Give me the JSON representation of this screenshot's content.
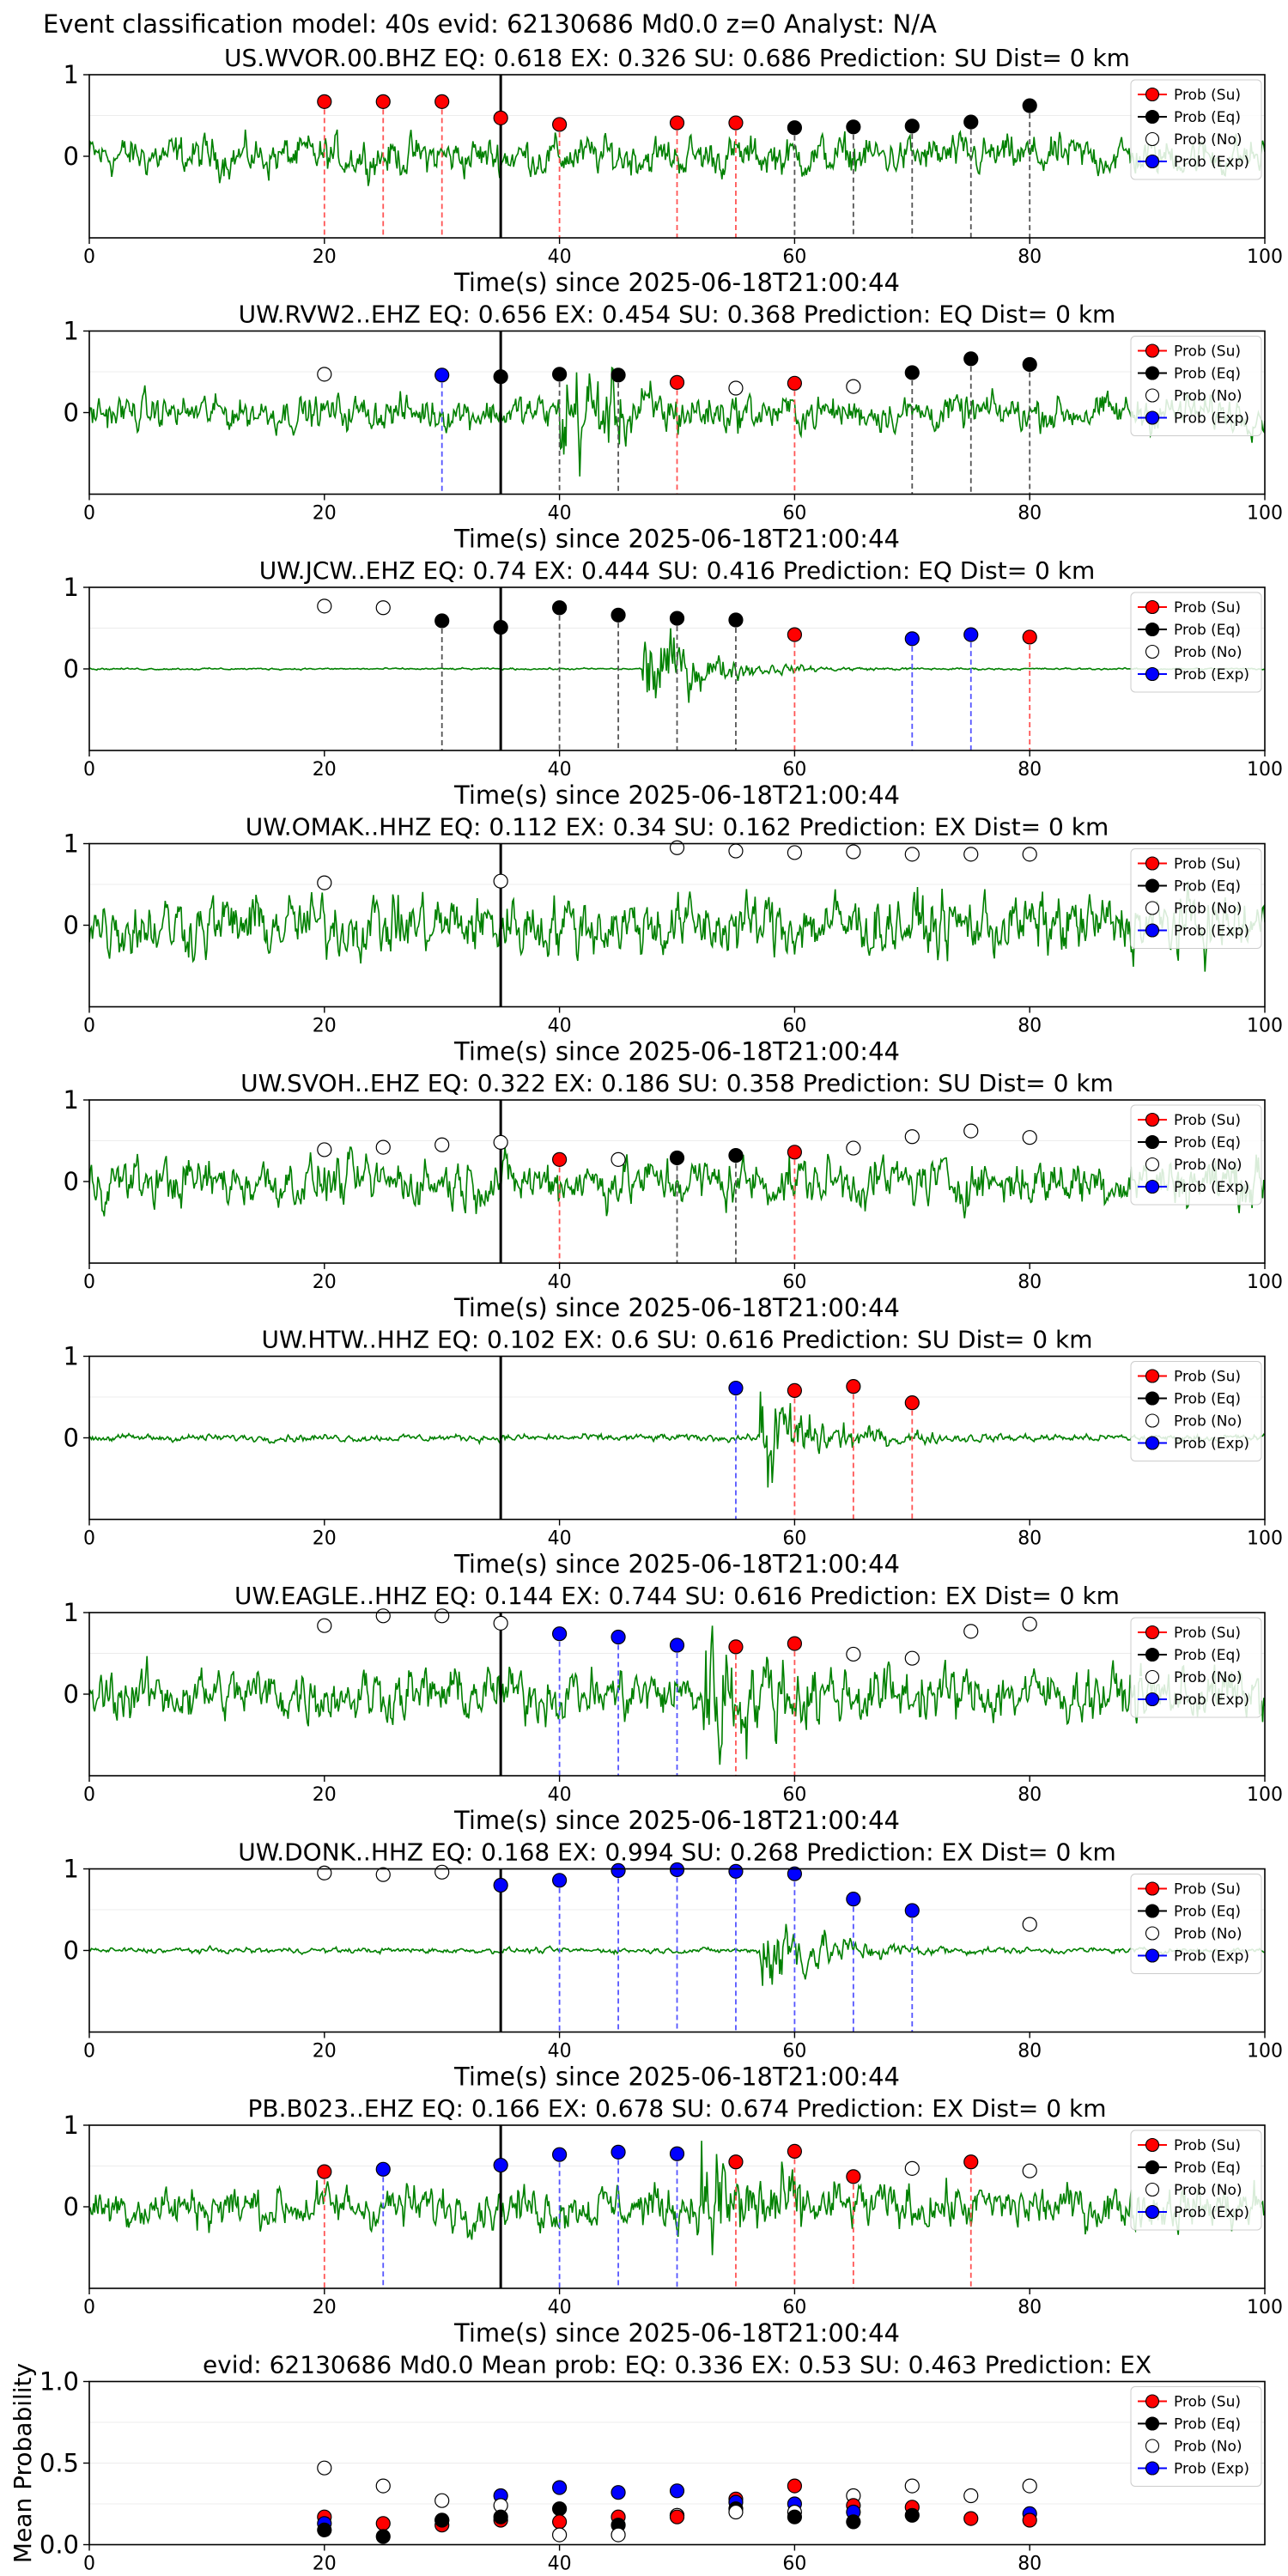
{
  "suptitle": "Event classification model: 40s evid: 62130686 Md0.0 z=0 Analyst: N/A",
  "xlabel": "Time(s) since 2025-06-18T21:00:44",
  "legend_labels": {
    "su": "Prob (Su)",
    "eq": "Prob (Eq)",
    "no": "Prob (No)",
    "exp": "Prob (Exp)"
  },
  "colors": {
    "trace": "#008000",
    "su": "#ff0000",
    "eq": "#000000",
    "no": "#ffffff",
    "exp": "#0000ff",
    "pick": "#000000"
  },
  "chart_data": [
    {
      "type": "scatter",
      "title": "US.WVOR.00.BHZ   EQ: 0.618  EX: 0.326  SU: 0.686   Prediction: SU    Dist= 0 km",
      "trace": "waveform",
      "amp": 0.45,
      "onset": null,
      "xlim": [
        0,
        100
      ],
      "x_ticks": [
        0,
        20,
        40,
        60,
        80,
        100
      ],
      "y_ticks": [
        0,
        1
      ],
      "pick_time": 35,
      "points": [
        [
          20,
          0.67,
          "su"
        ],
        [
          25,
          0.67,
          "su"
        ],
        [
          30,
          0.67,
          "su"
        ],
        [
          35,
          0.47,
          "su"
        ],
        [
          40,
          0.39,
          "su"
        ],
        [
          50,
          0.41,
          "su"
        ],
        [
          55,
          0.41,
          "su"
        ],
        [
          60,
          0.35,
          "eq"
        ],
        [
          65,
          0.36,
          "eq"
        ],
        [
          70,
          0.37,
          "eq"
        ],
        [
          75,
          0.42,
          "eq"
        ],
        [
          80,
          0.62,
          "eq"
        ]
      ]
    },
    {
      "type": "scatter",
      "title": "UW.RVW2..EHZ   EQ: 0.656  EX: 0.454  SU: 0.368   Prediction: EQ    Dist= 0 km",
      "trace": "waveform",
      "amp": 0.4,
      "onset": 40,
      "xlim": [
        0,
        100
      ],
      "x_ticks": [
        0,
        20,
        40,
        60,
        80,
        100
      ],
      "y_ticks": [
        0,
        1
      ],
      "pick_time": 35,
      "points": [
        [
          20,
          0.47,
          "no"
        ],
        [
          30,
          0.46,
          "exp"
        ],
        [
          35,
          0.44,
          "eq"
        ],
        [
          40,
          0.47,
          "eq"
        ],
        [
          45,
          0.46,
          "eq"
        ],
        [
          50,
          0.37,
          "su"
        ],
        [
          55,
          0.3,
          "no"
        ],
        [
          60,
          0.36,
          "su"
        ],
        [
          65,
          0.32,
          "no"
        ],
        [
          70,
          0.49,
          "eq"
        ],
        [
          75,
          0.66,
          "eq"
        ],
        [
          80,
          0.59,
          "eq"
        ]
      ]
    },
    {
      "type": "scatter",
      "title": "UW.JCW..EHZ   EQ: 0.74  EX: 0.444  SU: 0.416   Prediction: EQ    Dist= 0 km",
      "trace": "waveform",
      "amp": 0.02,
      "onset": 47,
      "xlim": [
        0,
        100
      ],
      "x_ticks": [
        0,
        20,
        40,
        60,
        80,
        100
      ],
      "y_ticks": [
        0,
        1
      ],
      "pick_time": 35,
      "points": [
        [
          20,
          0.77,
          "no"
        ],
        [
          25,
          0.75,
          "no"
        ],
        [
          30,
          0.59,
          "eq"
        ],
        [
          35,
          0.51,
          "eq"
        ],
        [
          40,
          0.75,
          "eq"
        ],
        [
          45,
          0.66,
          "eq"
        ],
        [
          50,
          0.62,
          "eq"
        ],
        [
          55,
          0.6,
          "eq"
        ],
        [
          60,
          0.42,
          "su"
        ],
        [
          70,
          0.37,
          "exp"
        ],
        [
          75,
          0.42,
          "exp"
        ],
        [
          80,
          0.39,
          "su"
        ]
      ]
    },
    {
      "type": "scatter",
      "title": "UW.OMAK..HHZ   EQ: 0.112  EX: 0.34  SU: 0.162   Prediction: EX    Dist= 0 km",
      "trace": "waveform",
      "amp": 0.7,
      "onset": null,
      "xlim": [
        0,
        100
      ],
      "x_ticks": [
        0,
        20,
        40,
        60,
        80,
        100
      ],
      "y_ticks": [
        0,
        1
      ],
      "pick_time": 35,
      "points": [
        [
          20,
          0.52,
          "no"
        ],
        [
          35,
          0.54,
          "no"
        ],
        [
          50,
          0.95,
          "no"
        ],
        [
          55,
          0.91,
          "no"
        ],
        [
          60,
          0.89,
          "no"
        ],
        [
          65,
          0.9,
          "no"
        ],
        [
          70,
          0.87,
          "no"
        ],
        [
          75,
          0.87,
          "no"
        ],
        [
          80,
          0.87,
          "no"
        ]
      ]
    },
    {
      "type": "scatter",
      "title": "UW.SVOH..EHZ   EQ: 0.322  EX: 0.186  SU: 0.358   Prediction: SU    Dist= 0 km",
      "trace": "waveform",
      "amp": 0.55,
      "onset": null,
      "xlim": [
        0,
        100
      ],
      "x_ticks": [
        0,
        20,
        40,
        60,
        80,
        100
      ],
      "y_ticks": [
        0,
        1
      ],
      "pick_time": 35,
      "points": [
        [
          20,
          0.39,
          "no"
        ],
        [
          25,
          0.42,
          "no"
        ],
        [
          30,
          0.45,
          "no"
        ],
        [
          35,
          0.48,
          "no"
        ],
        [
          40,
          0.27,
          "su"
        ],
        [
          45,
          0.27,
          "no"
        ],
        [
          50,
          0.29,
          "eq"
        ],
        [
          55,
          0.32,
          "eq"
        ],
        [
          60,
          0.36,
          "su"
        ],
        [
          65,
          0.41,
          "no"
        ],
        [
          70,
          0.55,
          "no"
        ],
        [
          75,
          0.62,
          "no"
        ],
        [
          80,
          0.54,
          "no"
        ]
      ]
    },
    {
      "type": "scatter",
      "title": "UW.HTW..HHZ   EQ: 0.102  EX: 0.6  SU: 0.616   Prediction: SU    Dist= 0 km",
      "trace": "waveform",
      "amp": 0.08,
      "onset": 57,
      "xlim": [
        0,
        100
      ],
      "x_ticks": [
        0,
        20,
        40,
        60,
        80,
        100
      ],
      "y_ticks": [
        0,
        1
      ],
      "pick_time": 35,
      "points": [
        [
          55,
          0.61,
          "exp"
        ],
        [
          60,
          0.58,
          "su"
        ],
        [
          65,
          0.63,
          "su"
        ],
        [
          70,
          0.43,
          "su"
        ]
      ]
    },
    {
      "type": "scatter",
      "title": "UW.EAGLE..HHZ   EQ: 0.144  EX: 0.744  SU: 0.616   Prediction: EX    Dist= 0 km",
      "trace": "waveform",
      "amp": 0.6,
      "onset": 52,
      "xlim": [
        0,
        100
      ],
      "x_ticks": [
        0,
        20,
        40,
        60,
        80,
        100
      ],
      "y_ticks": [
        0,
        1
      ],
      "pick_time": 35,
      "points": [
        [
          20,
          0.84,
          "no"
        ],
        [
          25,
          0.96,
          "no"
        ],
        [
          30,
          0.96,
          "no"
        ],
        [
          35,
          0.87,
          "no"
        ],
        [
          40,
          0.74,
          "exp"
        ],
        [
          45,
          0.7,
          "exp"
        ],
        [
          50,
          0.6,
          "exp"
        ],
        [
          55,
          0.58,
          "su"
        ],
        [
          60,
          0.62,
          "su"
        ],
        [
          65,
          0.49,
          "no"
        ],
        [
          70,
          0.44,
          "no"
        ],
        [
          75,
          0.77,
          "no"
        ],
        [
          80,
          0.86,
          "no"
        ]
      ]
    },
    {
      "type": "scatter",
      "title": "UW.DONK..HHZ   EQ: 0.168  EX: 0.994  SU: 0.268   Prediction: EX    Dist= 0 km",
      "trace": "waveform",
      "amp": 0.06,
      "onset": 57,
      "xlim": [
        0,
        100
      ],
      "x_ticks": [
        0,
        20,
        40,
        60,
        80,
        100
      ],
      "y_ticks": [
        0,
        1
      ],
      "pick_time": 35,
      "points": [
        [
          20,
          0.95,
          "no"
        ],
        [
          25,
          0.93,
          "no"
        ],
        [
          30,
          0.96,
          "no"
        ],
        [
          35,
          0.8,
          "exp"
        ],
        [
          40,
          0.86,
          "exp"
        ],
        [
          45,
          0.98,
          "exp"
        ],
        [
          50,
          0.99,
          "exp"
        ],
        [
          55,
          0.97,
          "exp"
        ],
        [
          60,
          0.94,
          "exp"
        ],
        [
          65,
          0.63,
          "exp"
        ],
        [
          70,
          0.49,
          "exp"
        ],
        [
          80,
          0.32,
          "no"
        ]
      ]
    },
    {
      "type": "scatter",
      "title": "PB.B023..EHZ   EQ: 0.166  EX: 0.678  SU: 0.674   Prediction: EX    Dist= 0 km",
      "trace": "waveform",
      "amp": 0.5,
      "onset": 52,
      "xlim": [
        0,
        100
      ],
      "x_ticks": [
        0,
        20,
        40,
        60,
        80,
        100
      ],
      "y_ticks": [
        0,
        1
      ],
      "pick_time": 35,
      "points": [
        [
          20,
          0.43,
          "su"
        ],
        [
          25,
          0.46,
          "exp"
        ],
        [
          35,
          0.51,
          "exp"
        ],
        [
          40,
          0.64,
          "exp"
        ],
        [
          45,
          0.67,
          "exp"
        ],
        [
          50,
          0.65,
          "exp"
        ],
        [
          55,
          0.55,
          "su"
        ],
        [
          60,
          0.68,
          "su"
        ],
        [
          65,
          0.37,
          "su"
        ],
        [
          70,
          0.47,
          "no"
        ],
        [
          75,
          0.55,
          "su"
        ],
        [
          80,
          0.44,
          "no"
        ]
      ]
    },
    {
      "type": "scatter",
      "title": "evid: 62130686  Md0.0   Mean prob:   EQ: 0.336  EX: 0.53  SU: 0.463   Prediction: EX",
      "ylabel": "Mean Probability",
      "trace": "none",
      "amp": 0,
      "onset": null,
      "xlim": [
        0,
        100
      ],
      "ylim": [
        0,
        1
      ],
      "x_ticks": [
        0,
        20,
        40,
        60,
        80
      ],
      "y_ticks": [
        0.0,
        0.5,
        1.0
      ],
      "y_tick_labels": [
        "0.0",
        "0.5",
        "1.0"
      ],
      "pick_time": null,
      "points": [
        [
          20,
          0.47,
          "no"
        ],
        [
          20,
          0.17,
          "su"
        ],
        [
          20,
          0.13,
          "exp"
        ],
        [
          20,
          0.09,
          "eq"
        ],
        [
          25,
          0.36,
          "no"
        ],
        [
          25,
          0.13,
          "su"
        ],
        [
          25,
          0.05,
          "eq"
        ],
        [
          30,
          0.27,
          "no"
        ],
        [
          30,
          0.15,
          "exp"
        ],
        [
          30,
          0.12,
          "su"
        ],
        [
          30,
          0.15,
          "eq"
        ],
        [
          35,
          0.3,
          "exp"
        ],
        [
          35,
          0.24,
          "no"
        ],
        [
          35,
          0.15,
          "su"
        ],
        [
          35,
          0.17,
          "eq"
        ],
        [
          40,
          0.35,
          "exp"
        ],
        [
          40,
          0.22,
          "eq"
        ],
        [
          40,
          0.14,
          "su"
        ],
        [
          40,
          0.06,
          "no"
        ],
        [
          45,
          0.32,
          "exp"
        ],
        [
          45,
          0.17,
          "su"
        ],
        [
          45,
          0.12,
          "eq"
        ],
        [
          45,
          0.06,
          "no"
        ],
        [
          50,
          0.33,
          "exp"
        ],
        [
          50,
          0.18,
          "eq"
        ],
        [
          50,
          0.18,
          "no"
        ],
        [
          50,
          0.17,
          "su"
        ],
        [
          55,
          0.28,
          "su"
        ],
        [
          55,
          0.26,
          "exp"
        ],
        [
          55,
          0.22,
          "eq"
        ],
        [
          55,
          0.2,
          "no"
        ],
        [
          60,
          0.36,
          "su"
        ],
        [
          60,
          0.25,
          "exp"
        ],
        [
          60,
          0.2,
          "no"
        ],
        [
          60,
          0.17,
          "eq"
        ],
        [
          65,
          0.3,
          "no"
        ],
        [
          65,
          0.24,
          "su"
        ],
        [
          65,
          0.2,
          "exp"
        ],
        [
          65,
          0.14,
          "eq"
        ],
        [
          70,
          0.36,
          "no"
        ],
        [
          70,
          0.23,
          "su"
        ],
        [
          70,
          0.18,
          "eq"
        ],
        [
          75,
          0.3,
          "no"
        ],
        [
          75,
          0.16,
          "su"
        ],
        [
          80,
          0.36,
          "no"
        ],
        [
          80,
          0.19,
          "exp"
        ],
        [
          80,
          0.15,
          "su"
        ]
      ]
    }
  ]
}
